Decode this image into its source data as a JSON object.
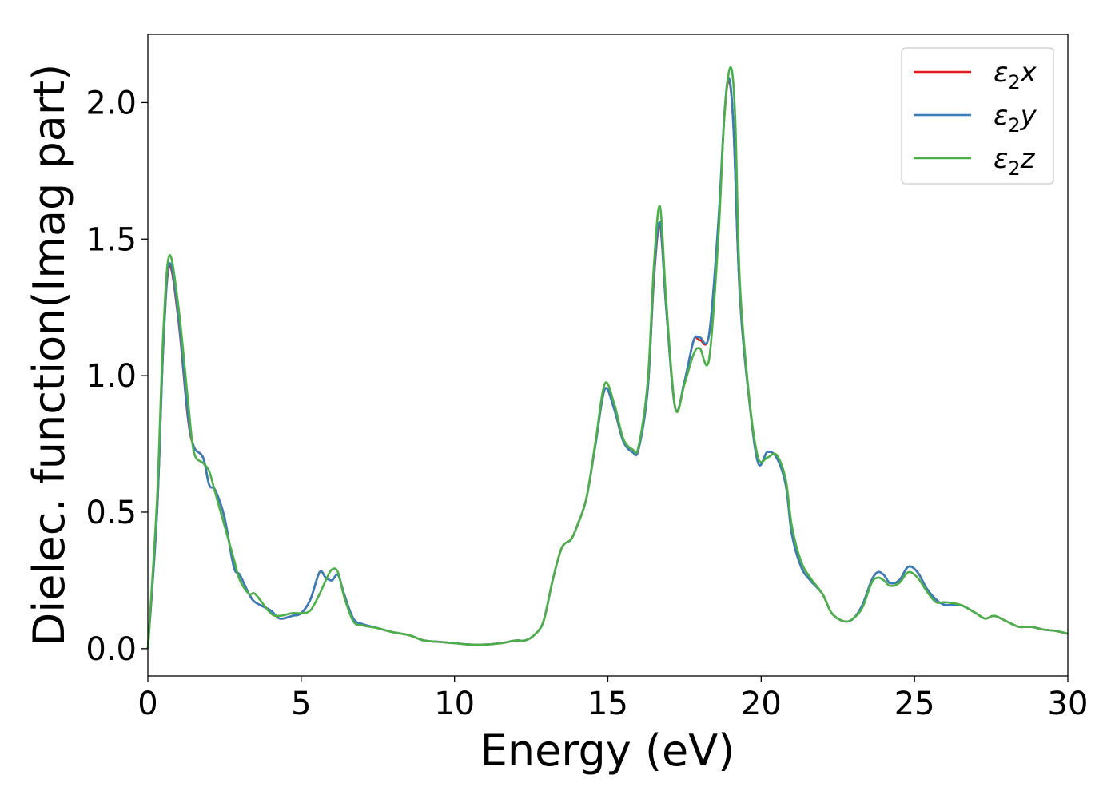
{
  "chart_data": {
    "type": "line",
    "title": "",
    "xlabel": "Energy (eV)",
    "ylabel": "Dielec. function(Imag part)",
    "xlim": [
      0,
      30
    ],
    "ylim": [
      -0.1,
      2.25
    ],
    "xticks": [
      0,
      5,
      10,
      15,
      20,
      25,
      30
    ],
    "yticks": [
      "0.0",
      "0.5",
      "1.0",
      "1.5",
      "2.0"
    ],
    "grid": false,
    "legend_position": "top-right",
    "series": [
      {
        "name": "ε2x",
        "legend_main": "ε",
        "legend_sub": "2",
        "legend_suffix": "x",
        "color": "#e41a1c",
        "x": [
          0,
          0.3,
          0.5,
          0.7,
          1.0,
          1.3,
          1.5,
          1.8,
          2.0,
          2.2,
          2.5,
          2.8,
          3.0,
          3.3,
          3.5,
          4.0,
          4.3,
          4.7,
          5.0,
          5.3,
          5.6,
          5.8,
          6.0,
          6.2,
          6.4,
          6.7,
          7.0,
          7.5,
          8.0,
          8.5,
          9.0,
          9.5,
          10.0,
          10.5,
          11.0,
          11.5,
          12.0,
          12.3,
          12.6,
          12.9,
          13.2,
          13.5,
          13.8,
          14.0,
          14.3,
          14.6,
          14.9,
          15.2,
          15.5,
          15.8,
          16.0,
          16.3,
          16.5,
          16.7,
          16.9,
          17.2,
          17.5,
          17.8,
          18.0,
          18.3,
          18.6,
          18.8,
          18.95,
          19.1,
          19.3,
          19.6,
          19.9,
          20.2,
          20.5,
          20.8,
          21.0,
          21.3,
          21.6,
          22.0,
          22.3,
          22.7,
          23.0,
          23.3,
          23.6,
          23.8,
          24.0,
          24.2,
          24.5,
          24.8,
          25.1,
          25.4,
          25.7,
          26.0,
          26.5,
          27.0,
          27.3,
          27.6,
          28.0,
          28.4,
          28.8,
          29.2,
          29.6,
          30.0
        ],
        "y": [
          0.0,
          0.5,
          1.1,
          1.4,
          1.2,
          0.85,
          0.74,
          0.7,
          0.6,
          0.58,
          0.48,
          0.3,
          0.27,
          0.2,
          0.17,
          0.14,
          0.11,
          0.12,
          0.13,
          0.18,
          0.28,
          0.26,
          0.25,
          0.27,
          0.2,
          0.11,
          0.09,
          0.075,
          0.06,
          0.05,
          0.03,
          0.025,
          0.02,
          0.015,
          0.015,
          0.02,
          0.03,
          0.03,
          0.05,
          0.1,
          0.25,
          0.37,
          0.4,
          0.45,
          0.55,
          0.75,
          0.95,
          0.88,
          0.76,
          0.72,
          0.73,
          0.95,
          1.35,
          1.55,
          1.25,
          0.88,
          0.98,
          1.13,
          1.13,
          1.15,
          1.55,
          1.95,
          2.08,
          1.9,
          1.3,
          0.92,
          0.68,
          0.72,
          0.7,
          0.6,
          0.42,
          0.3,
          0.25,
          0.2,
          0.13,
          0.1,
          0.11,
          0.16,
          0.25,
          0.28,
          0.27,
          0.24,
          0.25,
          0.3,
          0.28,
          0.22,
          0.18,
          0.16,
          0.16,
          0.13,
          0.11,
          0.12,
          0.1,
          0.08,
          0.08,
          0.07,
          0.065,
          0.055
        ]
      },
      {
        "name": "ε2y",
        "legend_main": "ε",
        "legend_sub": "2",
        "legend_suffix": "y",
        "color": "#377eb8",
        "x": [
          0,
          0.3,
          0.5,
          0.7,
          1.0,
          1.3,
          1.5,
          1.8,
          2.0,
          2.2,
          2.5,
          2.8,
          3.0,
          3.3,
          3.5,
          4.0,
          4.3,
          4.7,
          5.0,
          5.3,
          5.6,
          5.8,
          6.0,
          6.2,
          6.4,
          6.7,
          7.0,
          7.5,
          8.0,
          8.5,
          9.0,
          9.5,
          10.0,
          10.5,
          11.0,
          11.5,
          12.0,
          12.3,
          12.6,
          12.9,
          13.2,
          13.5,
          13.8,
          14.0,
          14.3,
          14.6,
          14.9,
          15.2,
          15.5,
          15.8,
          16.0,
          16.3,
          16.5,
          16.7,
          16.9,
          17.2,
          17.5,
          17.8,
          18.0,
          18.3,
          18.6,
          18.8,
          18.95,
          19.1,
          19.3,
          19.6,
          19.9,
          20.2,
          20.5,
          20.8,
          21.0,
          21.3,
          21.6,
          22.0,
          22.3,
          22.7,
          23.0,
          23.3,
          23.6,
          23.8,
          24.0,
          24.2,
          24.5,
          24.8,
          25.1,
          25.4,
          25.7,
          26.0,
          26.5,
          27.0,
          27.3,
          27.6,
          28.0,
          28.4,
          28.8,
          29.2,
          29.6,
          30.0
        ],
        "y": [
          0.0,
          0.5,
          1.1,
          1.41,
          1.21,
          0.86,
          0.74,
          0.7,
          0.6,
          0.58,
          0.48,
          0.3,
          0.27,
          0.2,
          0.17,
          0.14,
          0.11,
          0.12,
          0.13,
          0.18,
          0.28,
          0.26,
          0.25,
          0.27,
          0.2,
          0.11,
          0.09,
          0.075,
          0.06,
          0.05,
          0.03,
          0.025,
          0.02,
          0.015,
          0.015,
          0.02,
          0.03,
          0.03,
          0.05,
          0.1,
          0.25,
          0.37,
          0.4,
          0.45,
          0.55,
          0.75,
          0.95,
          0.88,
          0.76,
          0.72,
          0.73,
          0.95,
          1.36,
          1.56,
          1.25,
          0.88,
          0.98,
          1.13,
          1.14,
          1.15,
          1.56,
          1.96,
          2.09,
          1.9,
          1.3,
          0.92,
          0.68,
          0.72,
          0.7,
          0.6,
          0.42,
          0.3,
          0.25,
          0.2,
          0.13,
          0.1,
          0.11,
          0.16,
          0.25,
          0.28,
          0.27,
          0.24,
          0.25,
          0.3,
          0.28,
          0.22,
          0.18,
          0.16,
          0.16,
          0.13,
          0.11,
          0.12,
          0.1,
          0.08,
          0.08,
          0.07,
          0.065,
          0.055
        ]
      },
      {
        "name": "ε2z",
        "legend_main": "ε",
        "legend_sub": "2",
        "legend_suffix": "z",
        "color": "#4daf4a",
        "x": [
          0,
          0.3,
          0.5,
          0.7,
          1.0,
          1.3,
          1.5,
          1.8,
          2.0,
          2.2,
          2.5,
          2.8,
          3.0,
          3.3,
          3.5,
          4.0,
          4.3,
          4.7,
          5.0,
          5.3,
          5.6,
          5.8,
          6.0,
          6.2,
          6.4,
          6.7,
          7.0,
          7.5,
          8.0,
          8.5,
          9.0,
          9.5,
          10.0,
          10.5,
          11.0,
          11.5,
          12.0,
          12.3,
          12.6,
          12.9,
          13.2,
          13.5,
          13.8,
          14.0,
          14.3,
          14.6,
          14.9,
          15.2,
          15.5,
          15.8,
          16.0,
          16.3,
          16.5,
          16.7,
          16.9,
          17.2,
          17.5,
          17.8,
          18.0,
          18.3,
          18.6,
          18.8,
          19.0,
          19.15,
          19.3,
          19.6,
          19.9,
          20.2,
          20.5,
          20.8,
          21.0,
          21.3,
          21.6,
          22.0,
          22.3,
          22.7,
          23.0,
          23.3,
          23.6,
          23.8,
          24.0,
          24.2,
          24.5,
          24.8,
          25.1,
          25.4,
          25.7,
          26.0,
          26.5,
          27.0,
          27.3,
          27.6,
          28.0,
          28.4,
          28.8,
          29.2,
          29.6,
          30.0
        ],
        "y": [
          0.0,
          0.55,
          1.15,
          1.44,
          1.25,
          0.92,
          0.72,
          0.68,
          0.65,
          0.57,
          0.45,
          0.33,
          0.25,
          0.2,
          0.2,
          0.13,
          0.12,
          0.13,
          0.13,
          0.14,
          0.2,
          0.25,
          0.29,
          0.28,
          0.19,
          0.1,
          0.085,
          0.075,
          0.06,
          0.05,
          0.03,
          0.025,
          0.02,
          0.015,
          0.015,
          0.02,
          0.03,
          0.03,
          0.05,
          0.1,
          0.25,
          0.37,
          0.4,
          0.45,
          0.55,
          0.76,
          0.97,
          0.9,
          0.77,
          0.73,
          0.74,
          0.98,
          1.4,
          1.62,
          1.28,
          0.88,
          0.97,
          1.08,
          1.1,
          1.06,
          1.5,
          1.95,
          2.13,
          1.95,
          1.35,
          0.93,
          0.7,
          0.7,
          0.71,
          0.62,
          0.45,
          0.32,
          0.26,
          0.2,
          0.13,
          0.1,
          0.11,
          0.15,
          0.24,
          0.26,
          0.25,
          0.23,
          0.24,
          0.28,
          0.26,
          0.21,
          0.17,
          0.17,
          0.16,
          0.13,
          0.11,
          0.12,
          0.1,
          0.08,
          0.08,
          0.07,
          0.065,
          0.055
        ]
      }
    ]
  }
}
